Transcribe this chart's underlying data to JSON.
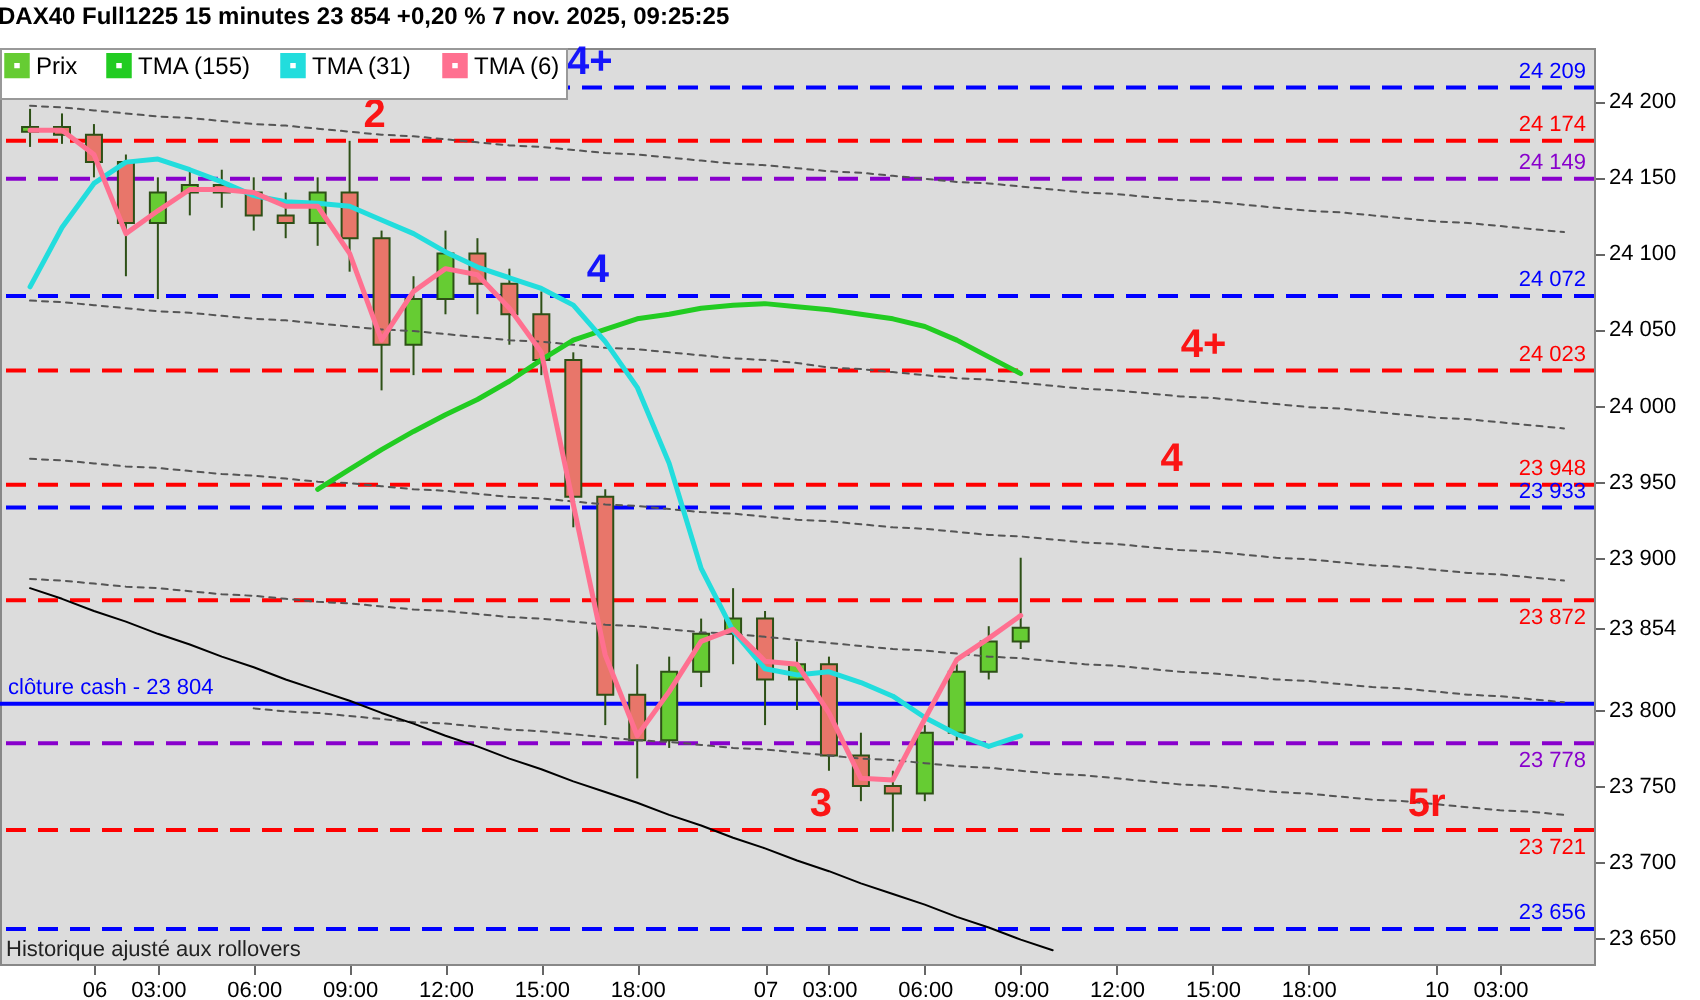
{
  "chart_data": {
    "type": "candlestick",
    "title": "DAX40 Full1225 15 minutes 23 854 +0,20 % 7 nov. 2025, 09:25:25",
    "legend": "top left",
    "categories": [
      null,
      null,
      "06",
      null,
      "03:00",
      null,
      null,
      "06:00",
      null,
      null,
      "09:00",
      null,
      null,
      "12:00",
      null,
      null,
      "15:00",
      null,
      null,
      "18:00",
      null,
      null,
      null,
      "07",
      null,
      "03:00",
      null,
      null,
      "06:00",
      null,
      null,
      "09:00",
      null,
      null,
      "12:00",
      null,
      null,
      "15:00",
      null,
      null,
      "18:00",
      null,
      null,
      null,
      "10",
      null,
      "03:00",
      null,
      null
    ],
    "ylim": [
      23633,
      24235
    ],
    "yticks": [
      {
        "value": 23650,
        "label": "23 650"
      },
      {
        "value": 23700,
        "label": "23 700"
      },
      {
        "value": 23750,
        "label": "23 750"
      },
      {
        "value": 23800,
        "label": "23 800"
      },
      {
        "value": 23854,
        "label": "23 854"
      },
      {
        "value": 23900,
        "label": "23 900"
      },
      {
        "value": 23950,
        "label": "23 950"
      },
      {
        "value": 24000,
        "label": "24 000"
      },
      {
        "value": 24050,
        "label": "24 050"
      },
      {
        "value": 24100,
        "label": "24 100"
      },
      {
        "value": 24150,
        "label": "24 150"
      },
      {
        "value": 24200,
        "label": "24 200"
      }
    ],
    "series": [
      {
        "name": "Prix",
        "color": "#66cc33",
        "colors": [
          "#66cc33",
          "#e8766a",
          "#e8766a",
          "#e8766a",
          "#66cc33",
          "#66cc33",
          "#e8766a",
          "#e8766a",
          "#e8766a",
          "#66cc33",
          "#e8766a",
          "#e8766a",
          "#66cc33",
          "#66cc33",
          "#e8766a",
          "#e8766a",
          "#e8766a",
          "#e8766a",
          "#e8766a",
          "#e8766a",
          "#66cc33",
          "#66cc33",
          "#66cc33",
          "#e8766a",
          "#66cc33",
          "#e8766a",
          "#e8766a",
          "#e8766a",
          "#66cc33",
          "#66cc33",
          "#66cc33",
          "#66cc33",
          null,
          null,
          null,
          null,
          null,
          null,
          null,
          null,
          null,
          null,
          null,
          null,
          null,
          null,
          null,
          null,
          null
        ],
        "ohlc": [
          [
            24180,
            24195,
            24170,
            24183
          ],
          [
            24183,
            24192,
            24172,
            24178
          ],
          [
            24178,
            24185,
            24150,
            24160
          ],
          [
            24160,
            24165,
            24085,
            24120
          ],
          [
            24120,
            24150,
            24070,
            24140
          ],
          [
            24140,
            24155,
            24125,
            24145
          ],
          [
            24145,
            24155,
            24130,
            24140
          ],
          [
            24140,
            24150,
            24115,
            24125
          ],
          [
            24125,
            24140,
            24110,
            24120
          ],
          [
            24120,
            24150,
            24105,
            24140
          ],
          [
            24140,
            24174,
            24088,
            24110
          ],
          [
            24110,
            24115,
            24010,
            24040
          ],
          [
            24040,
            24085,
            24020,
            24070
          ],
          [
            24070,
            24115,
            24060,
            24100
          ],
          [
            24100,
            24110,
            24060,
            24080
          ],
          [
            24080,
            24090,
            24040,
            24060
          ],
          [
            24060,
            24075,
            24020,
            24030
          ],
          [
            24030,
            24035,
            23920,
            23940
          ],
          [
            23940,
            23945,
            23790,
            23810
          ],
          [
            23810,
            23830,
            23755,
            23780
          ],
          [
            23780,
            23835,
            23775,
            23825
          ],
          [
            23825,
            23860,
            23815,
            23850
          ],
          [
            23850,
            23880,
            23830,
            23860
          ],
          [
            23860,
            23865,
            23790,
            23820
          ],
          [
            23820,
            23845,
            23800,
            23830
          ],
          [
            23830,
            23835,
            23760,
            23770
          ],
          [
            23770,
            23785,
            23740,
            23750
          ],
          [
            23750,
            23760,
            23720,
            23745
          ],
          [
            23745,
            23790,
            23740,
            23785
          ],
          [
            23785,
            23830,
            23780,
            23825
          ],
          [
            23825,
            23855,
            23820,
            23845
          ],
          [
            23845,
            23900,
            23840,
            23854
          ],
          null,
          null,
          null,
          null,
          null,
          null,
          null,
          null,
          null,
          null,
          null,
          null,
          null,
          null,
          null,
          null,
          null
        ]
      },
      {
        "type": "line",
        "color": "#555555",
        "line_style": "dashed",
        "values": [
          24197,
          24196,
          24194,
          24192,
          24190,
          24189,
          24187,
          24185,
          24184,
          24182,
          24180,
          24178,
          24177,
          24175,
          24173,
          24171,
          24170,
          24168,
          24166,
          24165,
          24163,
          24161,
          24159,
          24158,
          24156,
          24154,
          24153,
          24151,
          24149,
          24147,
          24146,
          24144,
          24142,
          24140,
          24139,
          24137,
          24135,
          24134,
          24132,
          24130,
          24128,
          24127,
          24125,
          24123,
          24121,
          24120,
          24118,
          24116,
          24114
        ]
      },
      {
        "type": "line",
        "color": "#555555",
        "line_style": "dashed",
        "values": [
          24069,
          24068,
          24066,
          24064,
          24062,
          24061,
          24059,
          24057,
          24056,
          24054,
          24052,
          24050,
          24049,
          24047,
          24045,
          24043,
          24042,
          24040,
          24038,
          24037,
          24035,
          24033,
          24031,
          24030,
          24028,
          24025,
          24024,
          24022,
          24020,
          24018,
          24017,
          24015,
          24013,
          24011,
          24010,
          24008,
          24006,
          24005,
          24003,
          24001,
          23999,
          23998,
          23996,
          23994,
          23992,
          23991,
          23989,
          23987,
          23985
        ]
      },
      {
        "type": "line",
        "color": "#555555",
        "line_style": "dashed",
        "values": [
          23965,
          23964,
          23962,
          23960,
          23959,
          23957,
          23955,
          23954,
          23952,
          23950,
          23949,
          23947,
          23945,
          23944,
          23942,
          23940,
          23939,
          23937,
          23935,
          23934,
          23932,
          23930,
          23929,
          23927,
          23925,
          23924,
          23922,
          23920,
          23919,
          23917,
          23915,
          23914,
          23912,
          23910,
          23909,
          23907,
          23905,
          23904,
          23902,
          23900,
          23899,
          23897,
          23895,
          23894,
          23892,
          23890,
          23889,
          23887,
          23885
        ]
      },
      {
        "type": "line",
        "color": "#555555",
        "line_style": "dashed",
        "values": [
          23886,
          23885,
          23883,
          23881,
          23880,
          23878,
          23876,
          23875,
          23873,
          23871,
          23870,
          23868,
          23866,
          23865,
          23863,
          23861,
          23860,
          23858,
          23856,
          23855,
          23853,
          23851,
          23850,
          23848,
          23846,
          23844,
          23842,
          23840,
          23839,
          23837,
          23835,
          23834,
          23832,
          23830,
          23829,
          23827,
          23825,
          23824,
          23822,
          23820,
          23819,
          23817,
          23815,
          23814,
          23812,
          23810,
          23809,
          23807,
          23805
        ]
      },
      {
        "type": "line",
        "color": "#555555",
        "line_style": "dashed",
        "values": [
          null,
          null,
          null,
          null,
          null,
          null,
          null,
          23801,
          23799,
          23798,
          23796,
          23794,
          23792,
          23791,
          23789,
          23787,
          23786,
          23784,
          23782,
          23780,
          23779,
          23777,
          23775,
          23774,
          23772,
          23770,
          23768,
          23767,
          23765,
          23763,
          23762,
          23760,
          23758,
          23757,
          23755,
          23753,
          23751,
          23750,
          23748,
          23746,
          23745,
          23743,
          23741,
          23740,
          23738,
          23736,
          23734,
          23733,
          23731
        ]
      },
      {
        "type": "line",
        "color": "#000000",
        "line_style": "solid",
        "values": [
          23880,
          23873,
          23865,
          23858,
          23850,
          23843,
          23835,
          23828,
          23820,
          23813,
          23806,
          23798,
          23791,
          23783,
          23776,
          23768,
          23761,
          23753,
          23746,
          23739,
          23731,
          23724,
          23716,
          23709,
          23701,
          23694,
          23686,
          23679,
          23672,
          23664,
          23657,
          23649,
          23642,
          null,
          null,
          null,
          null,
          null,
          null,
          null,
          null,
          null,
          null,
          null,
          null,
          null,
          null,
          null,
          null
        ]
      },
      {
        "name": "TMA (155)",
        "type": "line",
        "color": "#22cc22",
        "values": [
          null,
          null,
          null,
          null,
          null,
          null,
          null,
          null,
          null,
          23945,
          23958,
          23971,
          23983,
          23994,
          24004,
          24016,
          24030,
          24043,
          24050,
          24057,
          24060,
          24064,
          24066,
          24067,
          24065,
          24063,
          24060,
          24057,
          24052,
          24043,
          24032,
          24021,
          null,
          null,
          null,
          null,
          null,
          null,
          null,
          null,
          null,
          null,
          null,
          null,
          null,
          null,
          null,
          null,
          null
        ]
      },
      {
        "name": "TMA (31)",
        "type": "line",
        "color": "#22dddd",
        "values": [
          24078,
          24117,
          24146,
          24160,
          24162,
          24155,
          24147,
          24138,
          24134,
          24133,
          24131,
          24122,
          24113,
          24101,
          24091,
          24084,
          24077,
          24066,
          24042,
          24012,
          23962,
          23893,
          23852,
          23827,
          23823,
          23825,
          23818,
          23809,
          23795,
          23784,
          23776,
          23783,
          null,
          null,
          null,
          null,
          null,
          null,
          null,
          null,
          null,
          null,
          null,
          null,
          null,
          null,
          null,
          null,
          null
        ]
      },
      {
        "name": "TMA (6)",
        "type": "line",
        "color": "#ff7090",
        "values": [
          24181,
          24181,
          24165,
          24113,
          24128,
          24142,
          24142,
          24140,
          24131,
          24131,
          24100,
          24043,
          24075,
          24090,
          24086,
          24064,
          24035,
          23935,
          23836,
          23783,
          23812,
          23845,
          23853,
          23832,
          23830,
          23798,
          23755,
          23754,
          23794,
          23833,
          23847,
          23862,
          null,
          null,
          null,
          null,
          null,
          null,
          null,
          null,
          null,
          null,
          null,
          null,
          null,
          null,
          null,
          null,
          null
        ]
      }
    ],
    "ref_lines": [
      {
        "axis": "y",
        "value": 24209,
        "label": "24 209",
        "color": "#0000ff",
        "line_style": "dashed"
      },
      {
        "axis": "y",
        "value": 24174,
        "label": "24 174",
        "color": "#ff0000",
        "line_style": "dashed"
      },
      {
        "axis": "y",
        "value": 24149,
        "label": "24 149",
        "color": "#8800cc",
        "line_style": "dashed"
      },
      {
        "axis": "y",
        "value": 24072,
        "label": "24 072",
        "color": "#0000ff",
        "line_style": "dashed"
      },
      {
        "axis": "y",
        "value": 24023,
        "label": "24 023",
        "color": "#ff0000",
        "line_style": "dashed"
      },
      {
        "axis": "y",
        "value": 23948,
        "label": "23 948",
        "color": "#ff0000",
        "line_style": "dashed"
      },
      {
        "axis": "y",
        "value": 23933,
        "label": "23 933",
        "color": "#0000ff",
        "line_style": "dashed"
      },
      {
        "axis": "y",
        "value": 23872,
        "label": "23 872",
        "color": "#ff0000",
        "line_style": "dashed"
      },
      {
        "axis": "y",
        "value": 23804,
        "label": "clôture cash -  23 804",
        "color": "#0000ff",
        "line_style": "solid"
      },
      {
        "axis": "y",
        "value": 23778,
        "label": "23 778",
        "color": "#8800cc",
        "line_style": "dashed"
      },
      {
        "axis": "y",
        "value": 23721,
        "label": "23 721",
        "color": "#ff0000",
        "line_style": "dashed"
      },
      {
        "axis": "y",
        "value": 23656,
        "label": "23 656",
        "color": "#0000ff",
        "line_style": "dashed"
      }
    ],
    "annotations": [
      {
        "text": "4+",
        "y": 24209
      },
      {
        "text": "2",
        "y": 24174
      },
      {
        "text": "4",
        "y": 24072
      },
      {
        "text": "4+",
        "y": 24023
      },
      {
        "text": "4",
        "y": 23948
      },
      {
        "text": "3",
        "y": 23721
      },
      {
        "text": "5r",
        "y": 23721
      },
      "Historique ajusté aux rollovers"
    ]
  }
}
